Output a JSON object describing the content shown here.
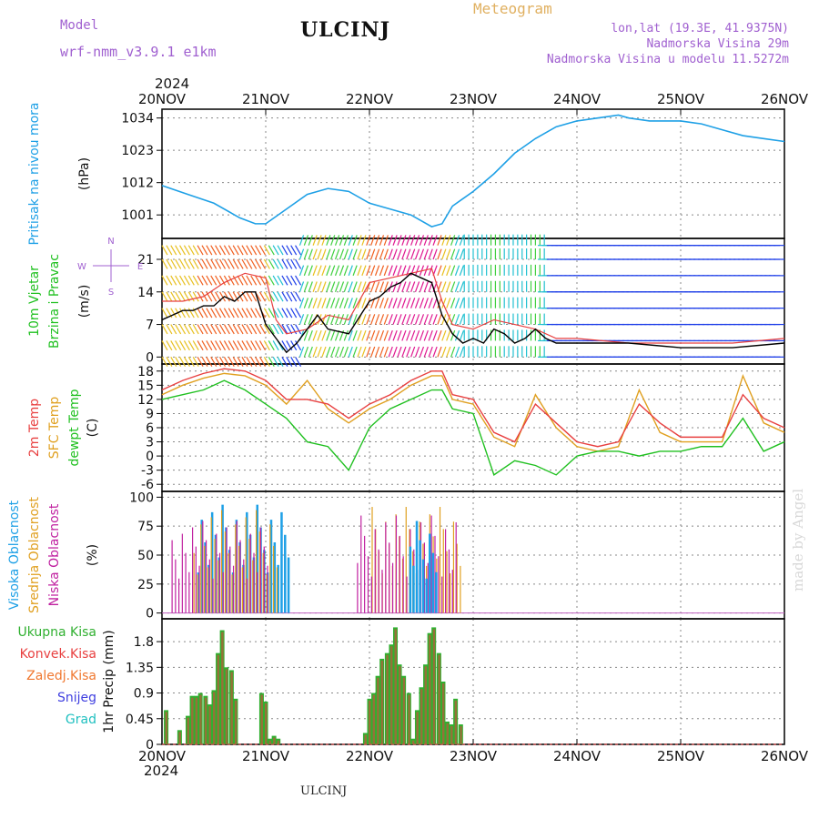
{
  "header": {
    "model_label": "Model",
    "model_name": "wrf-nmm_v3.9.1 e1km",
    "station": "ULCINJ",
    "meteogram": "Meteogram",
    "location": "lon,lat (19.3E, 41.9375N)",
    "elevation": "Nadmorska Visina 29m",
    "model_elevation": "Nadmorska Visina u modelu 11.5272m",
    "year_top": "2024",
    "year_bottom": "2024",
    "bottom_title": "ULCINJ",
    "watermark": "made by Angel"
  },
  "colors": {
    "pressure": "#1ea0e6",
    "wind_speed": "#000000",
    "temp_2m": "#e84040",
    "sfc_temp": "#e0a020",
    "dewpoint": "#20c020",
    "high_cloud": "#1ea0e6",
    "mid_cloud": "#e0a020",
    "low_cloud": "#c020a0",
    "total_precip": "#30b030",
    "conv_precip": "#e84040",
    "frozen_precip": "#f07830",
    "snow": "#4040e0",
    "hail": "#20c0c0",
    "gust": "#e84040"
  },
  "chart_data": [
    {
      "type": "line",
      "ylabel": [
        "Pritisak na nivou mora",
        "(hPa)"
      ],
      "x_ticks": [
        "20NOV",
        "21NOV",
        "22NOV",
        "23NOV",
        "24NOV",
        "25NOV",
        "26NOV"
      ],
      "x_range": [
        0,
        6
      ],
      "ylim": [
        993,
        1037
      ],
      "y_ticks": [
        1001,
        1012,
        1023,
        1034
      ],
      "grid": true,
      "series": [
        {
          "x": [
            0,
            0.25,
            0.5,
            0.75,
            0.9,
            1.0,
            1.2,
            1.4,
            1.6,
            1.8,
            2.0,
            2.2,
            2.4,
            2.6,
            2.7,
            2.8,
            3.0,
            3.2,
            3.4,
            3.6,
            3.8,
            4.0,
            4.2,
            4.4,
            4.5,
            4.7,
            5.0,
            5.2,
            5.4,
            5.6,
            5.8,
            6.0
          ],
          "y": [
            1011,
            1008,
            1005,
            1000,
            998,
            998,
            1003,
            1008,
            1010,
            1009,
            1005,
            1003,
            1001,
            997,
            998,
            1004,
            1009,
            1015,
            1022,
            1027,
            1031,
            1033,
            1034,
            1035,
            1034,
            1033,
            1033,
            1032,
            1030,
            1028,
            1027,
            1026
          ]
        }
      ]
    },
    {
      "type": "line",
      "ylabel": [
        "10m Vjetar",
        "Brzina i Pravac",
        "(m/s)"
      ],
      "compass": [
        "N",
        "W",
        "E",
        "S"
      ],
      "x_range": [
        0,
        6
      ],
      "ylim": [
        -1.5,
        25.5
      ],
      "y_ticks": [
        0,
        7,
        14,
        21
      ],
      "grid": true,
      "series": [
        {
          "name": "speed",
          "x": [
            0,
            0.1,
            0.2,
            0.3,
            0.4,
            0.5,
            0.6,
            0.7,
            0.8,
            0.9,
            1.0,
            1.1,
            1.2,
            1.3,
            1.4,
            1.5,
            1.6,
            1.8,
            2.0,
            2.1,
            2.2,
            2.3,
            2.4,
            2.5,
            2.6,
            2.7,
            2.8,
            2.9,
            3.0,
            3.1,
            3.2,
            3.3,
            3.4,
            3.5,
            3.6,
            3.7,
            3.8,
            4.0,
            4.5,
            5.0,
            5.5,
            6.0
          ],
          "y": [
            8,
            9,
            10,
            10,
            11,
            11,
            13,
            12,
            14,
            14,
            7,
            4,
            1,
            3,
            6,
            9,
            6,
            5,
            12,
            13,
            15,
            16,
            18,
            17,
            16,
            9,
            5,
            3,
            4,
            3,
            6,
            5,
            3,
            4,
            6,
            4,
            3,
            3,
            3,
            2,
            2,
            3
          ]
        },
        {
          "name": "gust",
          "x": [
            0,
            0.2,
            0.4,
            0.6,
            0.8,
            1.0,
            1.1,
            1.2,
            1.4,
            1.6,
            1.8,
            2.0,
            2.2,
            2.4,
            2.6,
            2.7,
            2.8,
            3.0,
            3.2,
            3.4,
            3.6,
            3.8,
            4.0,
            4.5,
            5.0,
            5.5,
            6.0
          ],
          "y": [
            12,
            12,
            13,
            16,
            18,
            17,
            8,
            5,
            6,
            9,
            8,
            16,
            17,
            18,
            19,
            12,
            7,
            6,
            8,
            7,
            6,
            4,
            4,
            3,
            3,
            3,
            4
          ]
        }
      ]
    },
    {
      "type": "line",
      "ylabel": [
        "2m Temp",
        "SFC Temp",
        "dewpt Temp",
        "(C)"
      ],
      "x_range": [
        0,
        6
      ],
      "ylim": [
        -7.5,
        19.5
      ],
      "y_ticks": [
        -6,
        -3,
        0,
        3,
        6,
        9,
        12,
        15,
        18
      ],
      "grid": true,
      "series": [
        {
          "name": "2m Temp",
          "x": [
            0,
            0.2,
            0.4,
            0.6,
            0.8,
            1.0,
            1.2,
            1.4,
            1.6,
            1.8,
            2.0,
            2.2,
            2.4,
            2.6,
            2.7,
            2.8,
            3.0,
            3.2,
            3.4,
            3.6,
            3.8,
            4.0,
            4.2,
            4.4,
            4.6,
            4.8,
            5.0,
            5.2,
            5.4,
            5.6,
            5.8,
            6.0
          ],
          "y": [
            14,
            16,
            17.5,
            18.5,
            18,
            16,
            12,
            12,
            11,
            8,
            11,
            13,
            16,
            18,
            18,
            13,
            12,
            5,
            3,
            11,
            7,
            3,
            2,
            3,
            11,
            7,
            4,
            4,
            4,
            13,
            8,
            6
          ]
        },
        {
          "name": "SFC Temp",
          "x": [
            0,
            0.2,
            0.4,
            0.6,
            0.8,
            1.0,
            1.2,
            1.4,
            1.6,
            1.8,
            2.0,
            2.2,
            2.4,
            2.6,
            2.7,
            2.8,
            3.0,
            3.2,
            3.4,
            3.6,
            3.8,
            4.0,
            4.2,
            4.4,
            4.6,
            4.8,
            5.0,
            5.2,
            5.4,
            5.6,
            5.8,
            6.0
          ],
          "y": [
            13,
            15,
            16.5,
            17.5,
            17,
            15,
            11,
            16,
            10,
            7,
            10,
            12,
            15,
            17,
            17,
            12,
            11,
            4,
            2,
            13,
            6,
            2,
            1,
            2,
            14,
            5,
            3,
            3,
            3,
            17,
            7,
            5
          ]
        },
        {
          "name": "dewpt Temp",
          "x": [
            0,
            0.2,
            0.4,
            0.6,
            0.8,
            1.0,
            1.2,
            1.4,
            1.6,
            1.8,
            2.0,
            2.2,
            2.4,
            2.6,
            2.7,
            2.8,
            3.0,
            3.2,
            3.4,
            3.6,
            3.8,
            4.0,
            4.2,
            4.4,
            4.6,
            4.8,
            5.0,
            5.2,
            5.4,
            5.6,
            5.8,
            6.0
          ],
          "y": [
            12,
            13,
            14,
            16,
            14,
            11,
            8,
            3,
            2,
            -3,
            6,
            10,
            12,
            14,
            14,
            10,
            9,
            -4,
            -1,
            -2,
            -4,
            0,
            1,
            1,
            0,
            1,
            1,
            2,
            2,
            8,
            1,
            3
          ]
        }
      ]
    },
    {
      "type": "bar",
      "ylabel": [
        "Visoka Oblacnost",
        "Srednja Oblacnost",
        "Niska Oblacnost",
        "(%)"
      ],
      "x_range": [
        0,
        6
      ],
      "ylim": [
        -5,
        105
      ],
      "y_ticks": [
        0,
        25,
        50,
        75,
        100
      ],
      "grid": true,
      "segments": [
        {
          "name": "Visoka Oblacnost",
          "x0": 0.35,
          "x1": 1.22,
          "value": 100
        },
        {
          "name": "Srednja Oblacnost",
          "x0": 0.3,
          "x1": 1.1,
          "value": 95
        },
        {
          "name": "Niska Oblacnost",
          "x0": 0.08,
          "x1": 1.0,
          "value": 85
        },
        {
          "name": "Srednja Oblacnost",
          "x0": 2.0,
          "x1": 2.85,
          "value": 98
        },
        {
          "name": "Niska Oblacnost",
          "x0": 1.85,
          "x1": 2.8,
          "value": 90
        },
        {
          "name": "Visoka Oblacnost",
          "x0": 2.35,
          "x1": 2.6,
          "value": 85
        }
      ]
    },
    {
      "type": "bar",
      "ylabel": [
        "1hr Precip (mm)"
      ],
      "legend": [
        "Ukupna Kisa",
        "Konvek.Kisa",
        "Zaledj.Kisa",
        "Snijeg",
        "Grad"
      ],
      "x_ticks": [
        "20NOV",
        "21NOV",
        "22NOV",
        "23NOV",
        "24NOV",
        "25NOV",
        "26NOV"
      ],
      "x_range": [
        0,
        6
      ],
      "ylim": [
        0,
        2.2
      ],
      "y_ticks": [
        0,
        0.45,
        0.9,
        1.35,
        1.8
      ],
      "grid": true,
      "x": [
        0.04,
        0.17,
        0.25,
        0.29,
        0.33,
        0.37,
        0.42,
        0.46,
        0.5,
        0.54,
        0.58,
        0.62,
        0.67,
        0.71,
        0.96,
        1.0,
        1.04,
        1.08,
        1.12,
        1.96,
        2.0,
        2.04,
        2.08,
        2.12,
        2.17,
        2.21,
        2.25,
        2.29,
        2.33,
        2.38,
        2.42,
        2.46,
        2.5,
        2.54,
        2.58,
        2.62,
        2.67,
        2.71,
        2.75,
        2.79,
        2.83,
        2.88
      ],
      "values": [
        0.6,
        0.25,
        0.5,
        0.85,
        0.85,
        0.9,
        0.85,
        0.7,
        0.95,
        1.6,
        2.0,
        1.35,
        1.3,
        0.8,
        0.9,
        0.75,
        0.1,
        0.15,
        0.1,
        0.2,
        0.8,
        0.9,
        1.2,
        1.5,
        1.6,
        1.75,
        2.05,
        1.4,
        1.2,
        0.9,
        0.1,
        0.6,
        1.0,
        1.4,
        1.95,
        2.05,
        1.6,
        1.1,
        0.4,
        0.35,
        0.8,
        0.35
      ]
    }
  ]
}
